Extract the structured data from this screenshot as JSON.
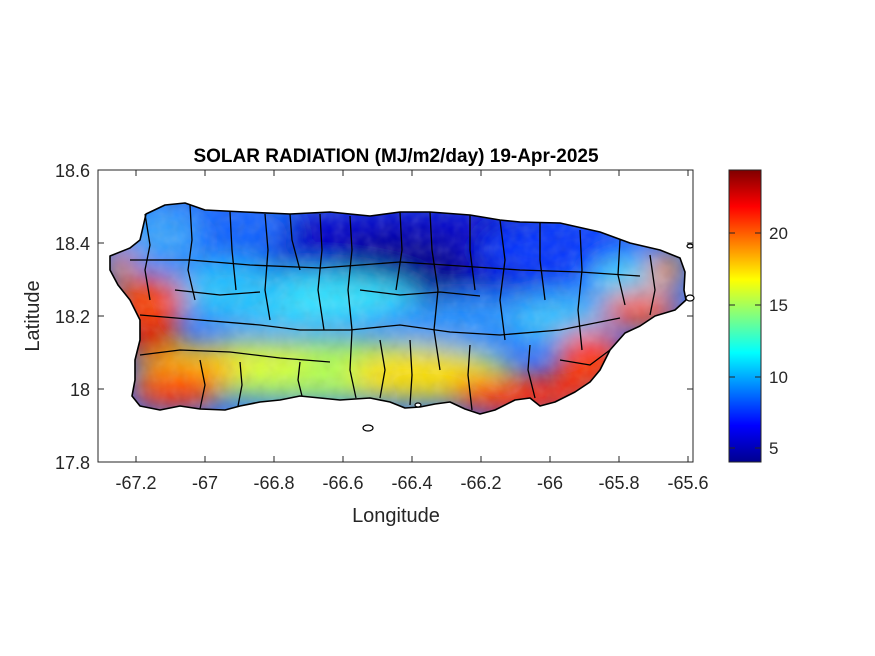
{
  "figure": {
    "title": "SOLAR RADIATION (MJ/m2/day) 19-Apr-2025",
    "xlabel": "Longitude",
    "ylabel": "Latitude",
    "x_ticks": [
      "-67.2",
      "-67",
      "-66.8",
      "-66.6",
      "-66.4",
      "-66.2",
      "-66",
      "-65.8",
      "-65.6"
    ],
    "y_ticks": [
      "18.6",
      "18.4",
      "18.2",
      "18",
      "17.8"
    ],
    "colorbar_ticks": [
      "20",
      "15",
      "10",
      "5"
    ]
  },
  "chart_data": {
    "type": "heatmap",
    "title": "SOLAR RADIATION (MJ/m2/day) 19-Apr-2025",
    "xlabel": "Longitude",
    "ylabel": "Latitude",
    "xlim": [
      -67.3,
      -65.58
    ],
    "ylim": [
      17.8,
      18.6
    ],
    "x_ticks": [
      -67.2,
      -67.0,
      -66.8,
      -66.6,
      -66.4,
      -66.2,
      -66.0,
      -65.8,
      -65.6
    ],
    "y_ticks": [
      17.8,
      18.0,
      18.2,
      18.4,
      18.6
    ],
    "colorbar": {
      "colormap": "jet",
      "range": [
        4,
        24.5
      ],
      "ticks": [
        5,
        10,
        15,
        20
      ]
    },
    "grid": false,
    "regions": [
      {
        "region": "north-central interior",
        "value": 5
      },
      {
        "region": "northwest",
        "value": 9
      },
      {
        "region": "north-east",
        "value": 8
      },
      {
        "region": "west coast",
        "value": 22
      },
      {
        "region": "south-west coast",
        "value": 20
      },
      {
        "region": "south-central coast",
        "value": 15
      },
      {
        "region": "south-east coast",
        "value": 23
      },
      {
        "region": "east coast",
        "value": 20
      },
      {
        "region": "central mountains",
        "value": 11
      }
    ]
  },
  "colors": {
    "jet_low": "#00008f",
    "jet_mid": "#80ff80",
    "jet_high": "#800000",
    "boundary": "#000000"
  }
}
